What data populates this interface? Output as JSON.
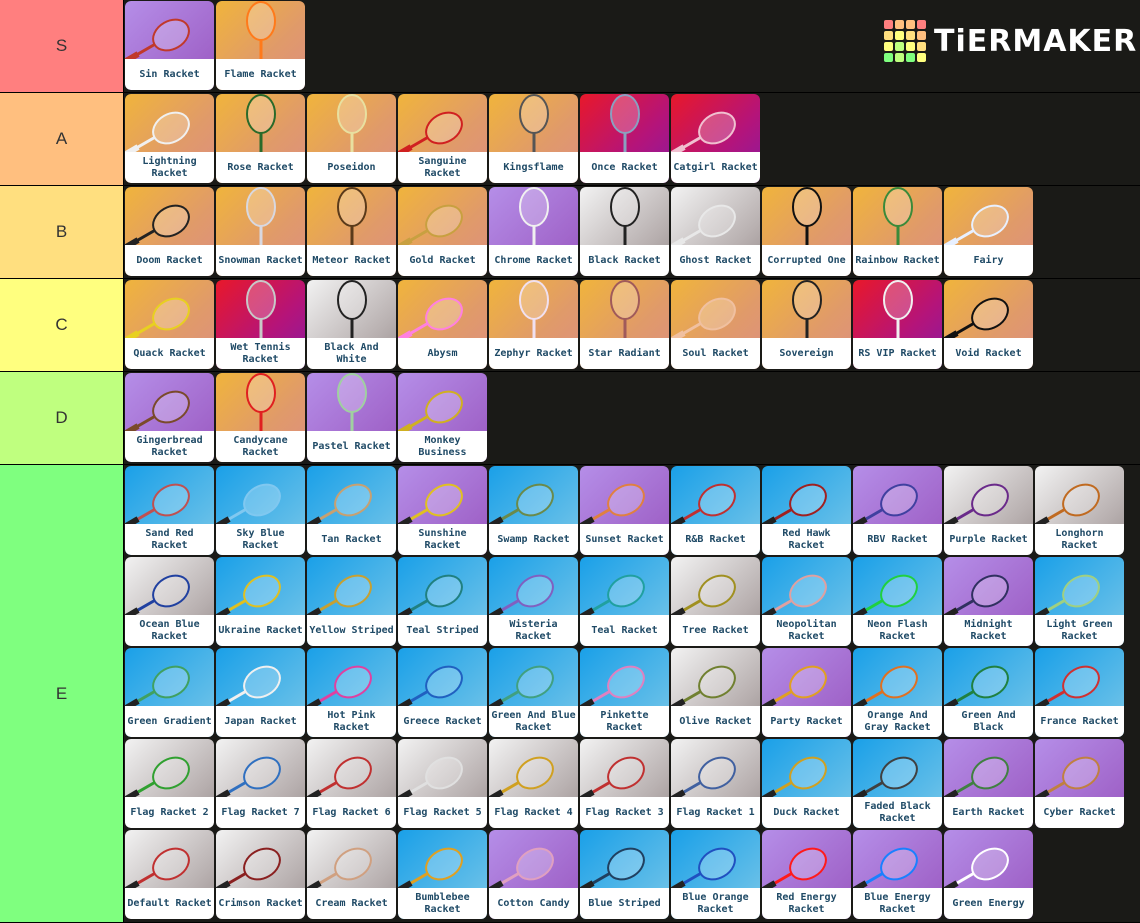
{
  "logo": {
    "text": "TiERMAKER",
    "colors": [
      "#ff7f7f",
      "#ffbf7f",
      "#ffdf7f",
      "#ffff7f",
      "#bfff7f",
      "#7fff7f"
    ]
  },
  "tiers": [
    {
      "label": "S",
      "color": "#ff7f7f",
      "items": [
        {
          "label": "Sin Racket",
          "bg": "purple",
          "racket": "#c0392b"
        },
        {
          "label": "Flame Racket",
          "bg": "orange",
          "racket": "#ff7a1a"
        }
      ]
    },
    {
      "label": "A",
      "color": "#ffbf7f",
      "items": [
        {
          "label": "Lightning Racket",
          "bg": "orange",
          "racket": "#f0f0f0"
        },
        {
          "label": "Rose Racket",
          "bg": "orange",
          "racket": "#2a6a2a"
        },
        {
          "label": "Poseidon",
          "bg": "orange",
          "racket": "#e8e0a0"
        },
        {
          "label": "Sanguine Racket",
          "bg": "orange",
          "racket": "#d02020"
        },
        {
          "label": "Kingsflame",
          "bg": "orange",
          "racket": "#555555"
        },
        {
          "label": "Once Racket",
          "bg": "red",
          "racket": "#8aa0c0"
        },
        {
          "label": "Catgirl Racket",
          "bg": "red",
          "racket": "#f0c0d0"
        }
      ]
    },
    {
      "label": "B",
      "color": "#ffdf7f",
      "items": [
        {
          "label": "Doom Racket",
          "bg": "orange",
          "racket": "#222222"
        },
        {
          "label": "Snowman Racket",
          "bg": "orange",
          "racket": "#d8d8e0"
        },
        {
          "label": "Meteor Racket",
          "bg": "orange",
          "racket": "#5a3a1a"
        },
        {
          "label": "Gold Racket",
          "bg": "orange",
          "racket": "#c8a040"
        },
        {
          "label": "Chrome Racket",
          "bg": "purple",
          "racket": "#f0f0f0"
        },
        {
          "label": "Black Racket",
          "bg": "grey",
          "racket": "#222222"
        },
        {
          "label": "Ghost Racket",
          "bg": "grey",
          "racket": "#e8e8e8"
        },
        {
          "label": "Corrupted One",
          "bg": "orange",
          "racket": "#111111"
        },
        {
          "label": "Rainbow Racket",
          "bg": "orange",
          "racket": "#3a8a3a"
        },
        {
          "label": "Fairy",
          "bg": "orange",
          "racket": "#e8f0ff"
        }
      ]
    },
    {
      "label": "C",
      "color": "#ffff7f",
      "items": [
        {
          "label": "Quack Racket",
          "bg": "orange",
          "racket": "#e8d020"
        },
        {
          "label": "Wet Tennis Racket",
          "bg": "red",
          "racket": "#c8c8c8"
        },
        {
          "label": "Black And White",
          "bg": "grey",
          "racket": "#222222"
        },
        {
          "label": "Abysm",
          "bg": "orange",
          "racket": "#ff80e0"
        },
        {
          "label": "Zephyr Racket",
          "bg": "orange",
          "racket": "#f0e0f0"
        },
        {
          "label": "Star Radiant",
          "bg": "orange",
          "racket": "#a05a5a"
        },
        {
          "label": "Soul Racket",
          "bg": "orange",
          "racket": "#f0c0a0"
        },
        {
          "label": "Sovereign",
          "bg": "orange",
          "racket": "#222222"
        },
        {
          "label": "RS VIP Racket",
          "bg": "red",
          "racket": "#f0f0f0"
        },
        {
          "label": "Void Racket",
          "bg": "orange",
          "racket": "#111111"
        }
      ]
    },
    {
      "label": "D",
      "color": "#bfff7f",
      "items": [
        {
          "label": "Gingerbread Racket",
          "bg": "purple",
          "racket": "#7a4a2a"
        },
        {
          "label": "Candycane Racket",
          "bg": "orange",
          "racket": "#e02020"
        },
        {
          "label": "Pastel Racket",
          "bg": "purple",
          "racket": "#a0d0a0"
        },
        {
          "label": "Monkey Business",
          "bg": "purple",
          "racket": "#d0b020"
        }
      ]
    },
    {
      "label": "E",
      "color": "#7fff7f",
      "items": [
        {
          "label": "Sand Red Racket",
          "bg": "blue",
          "racket": "#c05050"
        },
        {
          "label": "Sky Blue Racket",
          "bg": "blue",
          "racket": "#80c8f0"
        },
        {
          "label": "Tan Racket",
          "bg": "blue",
          "racket": "#c8a070"
        },
        {
          "label": "Sunshine Racket",
          "bg": "purple",
          "racket": "#e0c020"
        },
        {
          "label": "Swamp Racket",
          "bg": "blue",
          "racket": "#6a8a4a"
        },
        {
          "label": "Sunset Racket",
          "bg": "purple",
          "racket": "#e08040"
        },
        {
          "label": "R&B Racket",
          "bg": "blue",
          "racket": "#c03030"
        },
        {
          "label": "Red Hawk Racket",
          "bg": "blue",
          "racket": "#a02020"
        },
        {
          "label": "RBV Racket",
          "bg": "purple",
          "racket": "#4040a0"
        },
        {
          "label": "Purple Racket",
          "bg": "grey",
          "racket": "#6a2a8a"
        },
        {
          "label": "Longhorn Racket",
          "bg": "grey",
          "racket": "#c06a20"
        },
        {
          "label": "Ocean Blue Racket",
          "bg": "grey",
          "racket": "#2040a0"
        },
        {
          "label": "Ukraine Racket",
          "bg": "blue",
          "racket": "#e0c020"
        },
        {
          "label": "Yellow Striped",
          "bg": "blue",
          "racket": "#c8a030"
        },
        {
          "label": "Teal Striped",
          "bg": "blue",
          "racket": "#208080"
        },
        {
          "label": "Wisteria Racket",
          "bg": "blue",
          "racket": "#8060c0"
        },
        {
          "label": "Teal Racket",
          "bg": "blue",
          "racket": "#20a0a0"
        },
        {
          "label": "Tree Racket",
          "bg": "grey",
          "racket": "#a09020"
        },
        {
          "label": "Neopolitan Racket",
          "bg": "blue",
          "racket": "#e0a0a0"
        },
        {
          "label": "Neon Flash Racket",
          "bg": "blue",
          "racket": "#20d040"
        },
        {
          "label": "Midnight Racket",
          "bg": "purple",
          "racket": "#303060"
        },
        {
          "label": "Light Green Racket",
          "bg": "blue",
          "racket": "#a0d080"
        },
        {
          "label": "Green Gradient",
          "bg": "blue",
          "racket": "#40a060"
        },
        {
          "label": "Japan Racket",
          "bg": "blue",
          "racket": "#f0f0f0"
        },
        {
          "label": "Hot Pink Racket",
          "bg": "blue",
          "racket": "#e040a0"
        },
        {
          "label": "Greece Racket",
          "bg": "blue",
          "racket": "#2060c0"
        },
        {
          "label": "Green And Blue Racket",
          "bg": "blue",
          "racket": "#40a080"
        },
        {
          "label": "Pinkette Racket",
          "bg": "blue",
          "racket": "#e080c0"
        },
        {
          "label": "Olive Racket",
          "bg": "grey",
          "racket": "#708030"
        },
        {
          "label": "Party Racket",
          "bg": "purple",
          "racket": "#e0a020"
        },
        {
          "label": "Orange And Gray Racket",
          "bg": "blue",
          "racket": "#e07020"
        },
        {
          "label": "Green And Black",
          "bg": "blue",
          "racket": "#208040"
        },
        {
          "label": "France Racket",
          "bg": "blue",
          "racket": "#d03030"
        },
        {
          "label": "Flag Racket 2",
          "bg": "grey",
          "racket": "#30a030"
        },
        {
          "label": "Flag Racket 7",
          "bg": "grey",
          "racket": "#3070c0"
        },
        {
          "label": "Flag Racket 6",
          "bg": "grey",
          "racket": "#c03030"
        },
        {
          "label": "Flag Racket 5",
          "bg": "grey",
          "racket": "#e0e0e0"
        },
        {
          "label": "Flag Racket 4",
          "bg": "grey",
          "racket": "#d0a020"
        },
        {
          "label": "Flag Racket 3",
          "bg": "grey",
          "racket": "#c03030"
        },
        {
          "label": "Flag Racket 1",
          "bg": "grey",
          "racket": "#4060a0"
        },
        {
          "label": "Duck Racket",
          "bg": "blue",
          "racket": "#d0a020"
        },
        {
          "label": "Faded Black Racket",
          "bg": "blue",
          "racket": "#404040"
        },
        {
          "label": "Earth Racket",
          "bg": "purple",
          "racket": "#408040"
        },
        {
          "label": "Cyber Racket",
          "bg": "purple",
          "racket": "#c08040"
        },
        {
          "label": "Default Racket",
          "bg": "grey",
          "racket": "#c03030"
        },
        {
          "label": "Crimson Racket",
          "bg": "grey",
          "racket": "#8a2020"
        },
        {
          "label": "Cream Racket",
          "bg": "grey",
          "racket": "#d0a080"
        },
        {
          "label": "Bumblebee Racket",
          "bg": "blue",
          "racket": "#e0a020"
        },
        {
          "label": "Cotton Candy",
          "bg": "purple",
          "racket": "#e0a0c0"
        },
        {
          "label": "Blue Striped",
          "bg": "blue",
          "racket": "#204060"
        },
        {
          "label": "Blue Orange Racket",
          "bg": "blue",
          "racket": "#2050c0"
        },
        {
          "label": "Red Energy Racket",
          "bg": "purple",
          "racket": "#ff1a1a"
        },
        {
          "label": "Blue Energy Racket",
          "bg": "purple",
          "racket": "#1a80ff"
        },
        {
          "label": "Green Energy",
          "bg": "purple",
          "racket": "#ffffff"
        }
      ]
    }
  ]
}
